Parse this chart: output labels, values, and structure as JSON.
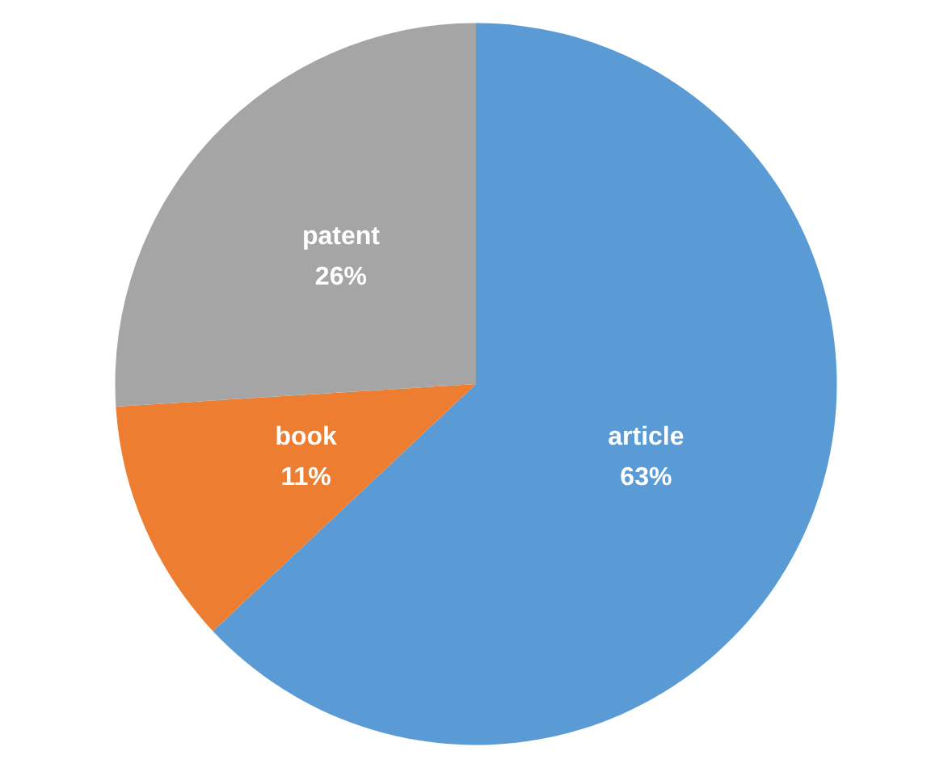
{
  "chart_data": {
    "type": "pie",
    "categories": [
      "article",
      "book",
      "patent"
    ],
    "values": [
      63,
      11,
      26
    ],
    "value_labels": [
      "63%",
      "11%",
      "26%"
    ],
    "colors": [
      "#5b9bd5",
      "#ed7d31",
      "#a5a5a5"
    ],
    "legend": false
  }
}
